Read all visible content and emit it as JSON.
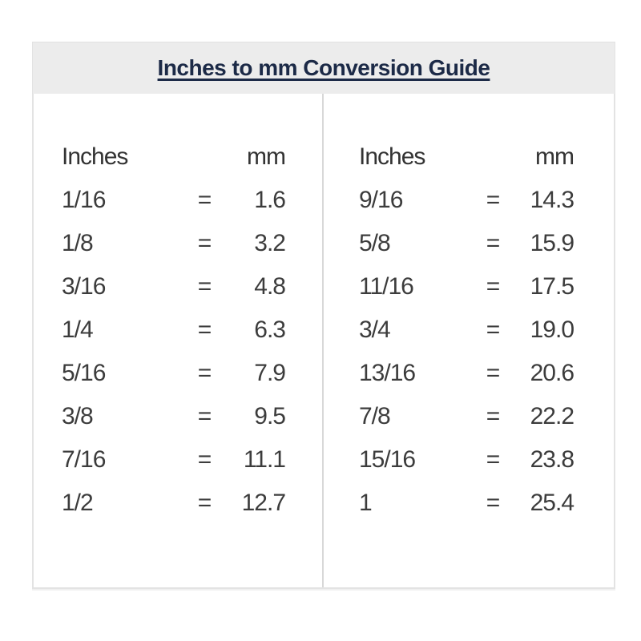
{
  "header": {
    "title": "Inches to mm Conversion Guide"
  },
  "table": {
    "left": {
      "col_inches": "Inches",
      "col_mm": "mm",
      "rows": [
        {
          "in": "1/16",
          "eq": "=",
          "mm": "1.6"
        },
        {
          "in": "1/8",
          "eq": "=",
          "mm": "3.2"
        },
        {
          "in": "3/16",
          "eq": "=",
          "mm": "4.8"
        },
        {
          "in": "1/4",
          "eq": "=",
          "mm": "6.3"
        },
        {
          "in": "5/16",
          "eq": "=",
          "mm": "7.9"
        },
        {
          "in": "3/8",
          "eq": "=",
          "mm": "9.5"
        },
        {
          "in": "7/16",
          "eq": "=",
          "mm": "11.1"
        },
        {
          "in": "1/2",
          "eq": "=",
          "mm": "12.7"
        }
      ]
    },
    "right": {
      "col_inches": "Inches",
      "col_mm": "mm",
      "rows": [
        {
          "in": "9/16",
          "eq": "=",
          "mm": "14.3"
        },
        {
          "in": "5/8",
          "eq": "=",
          "mm": "15.9"
        },
        {
          "in": "11/16",
          "eq": "=",
          "mm": "17.5"
        },
        {
          "in": "3/4",
          "eq": "=",
          "mm": "19.0"
        },
        {
          "in": "13/16",
          "eq": "=",
          "mm": "20.6"
        },
        {
          "in": "7/8",
          "eq": "=",
          "mm": "22.2"
        },
        {
          "in": "15/16",
          "eq": "=",
          "mm": "23.8"
        },
        {
          "in": "1",
          "eq": "=",
          "mm": "25.4"
        }
      ]
    }
  },
  "colors": {
    "title_text": "#1c2a47",
    "header_background": "#ececec",
    "body_text": "#3c3c3c",
    "box_border": "#e3e3e3",
    "column_divider": "#d8d8d8"
  }
}
